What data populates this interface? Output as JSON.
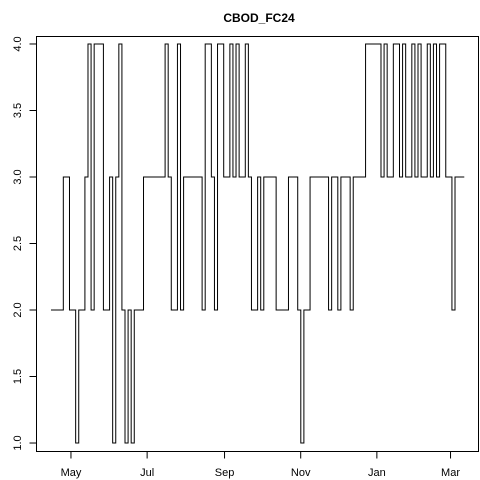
{
  "chart_data": {
    "type": "line",
    "title": "CBOD_FC24",
    "xlabel": "",
    "ylabel": "",
    "step": true,
    "grid": false,
    "legend": "none",
    "x_start": "2016-04-15",
    "x_end": "2017-03-12",
    "xlim": [
      "2016-04-03",
      "2017-03-23"
    ],
    "ylim": [
      0.94,
      4.06
    ],
    "x_ticks": [
      {
        "label": "May",
        "date": "2016-05-01"
      },
      {
        "label": "Jul",
        "date": "2016-07-01"
      },
      {
        "label": "Sep",
        "date": "2016-09-01"
      },
      {
        "label": "Nov",
        "date": "2016-11-01"
      },
      {
        "label": "Jan",
        "date": "2017-01-01"
      },
      {
        "label": "Mar",
        "date": "2017-03-01"
      }
    ],
    "y_ticks": [
      {
        "label": "1.0",
        "value": 1.0
      },
      {
        "label": "1.5",
        "value": 1.5
      },
      {
        "label": "2.0",
        "value": 2.0
      },
      {
        "label": "2.5",
        "value": 2.5
      },
      {
        "label": "3.0",
        "value": 3.0
      },
      {
        "label": "3.5",
        "value": 3.5
      },
      {
        "label": "4.0",
        "value": 4.0
      }
    ],
    "series": [
      {
        "values": [
          2,
          2,
          2,
          2,
          3,
          3,
          2,
          2,
          1,
          2,
          2,
          3,
          4,
          2,
          4,
          4,
          4,
          2,
          2,
          3,
          1,
          3,
          4,
          2,
          1,
          2,
          1,
          2,
          2,
          2,
          3,
          3,
          3,
          3,
          3,
          3,
          3,
          4,
          3,
          2,
          2,
          4,
          2,
          3,
          3,
          3,
          3,
          3,
          3,
          2,
          4,
          4,
          3,
          2,
          4,
          4,
          3,
          3,
          4,
          3,
          4,
          3,
          3,
          4,
          3,
          2,
          2,
          3,
          2,
          3,
          3,
          3,
          3,
          2,
          2,
          2,
          2,
          3,
          3,
          3,
          2,
          1,
          2,
          2,
          3,
          3,
          3,
          3,
          3,
          3,
          2,
          3,
          3,
          2,
          3,
          3,
          3,
          2,
          3,
          3,
          3,
          3,
          4,
          4,
          4,
          4,
          4,
          3,
          4,
          3,
          3,
          4,
          4,
          3,
          4,
          3,
          3,
          4,
          3,
          4,
          3,
          3,
          4,
          3,
          4,
          3,
          4,
          4,
          3,
          3,
          2,
          3,
          3,
          3
        ]
      }
    ],
    "line_color": "#000000"
  }
}
